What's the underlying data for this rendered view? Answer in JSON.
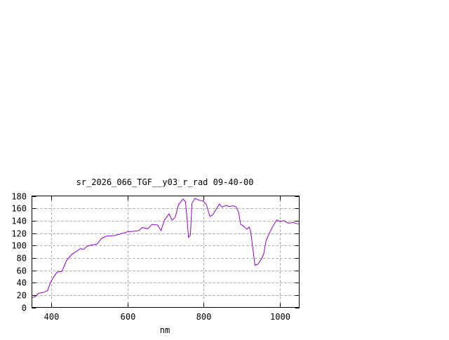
{
  "chart_data": {
    "type": "line",
    "title": "sr_2026_066_TGF__y03_r_rad 09-40-00",
    "xlabel": "nm",
    "ylabel": "",
    "xlim": [
      350,
      1050
    ],
    "ylim": [
      0,
      180
    ],
    "xticks": [
      400,
      600,
      800,
      1000
    ],
    "yticks": [
      0,
      20,
      40,
      60,
      80,
      100,
      120,
      140,
      160,
      180
    ],
    "grid": true,
    "line_color": "#9400d3",
    "series": [
      {
        "x": [
          350,
          358,
          367,
          379,
          391,
          399,
          407,
          416,
          428,
          434,
          440,
          453,
          468,
          477,
          486,
          495,
          508,
          520,
          532,
          544,
          566,
          584,
          600,
          630,
          639,
          654,
          664,
          679,
          688,
          697,
          709,
          717,
          725,
          734,
          746,
          752,
          756,
          760,
          765,
          769,
          777,
          789,
          798,
          807,
          816,
          823,
          832,
          841,
          848,
          859,
          865,
          878,
          885,
          891,
          897,
          905,
          913,
          919,
          923,
          930,
          934,
          942,
          951,
          957,
          963,
          972,
          982,
          991,
          1000,
          1009,
          1021,
          1034,
          1046,
          1050
        ],
        "y": [
          16,
          17,
          23,
          24,
          27,
          41,
          49,
          57,
          58,
          66,
          75,
          85,
          91,
          95,
          94,
          99,
          101,
          102,
          111,
          115,
          116,
          119,
          122,
          124,
          129,
          127,
          134,
          133,
          124,
          141,
          151,
          141,
          145,
          166,
          175,
          171,
          145,
          113,
          117,
          168,
          176,
          173,
          172,
          166,
          147,
          149,
          158,
          167,
          162,
          165,
          163,
          164,
          162,
          154,
          134,
          131,
          126,
          130,
          122,
          88,
          68,
          70,
          78,
          86,
          107,
          120,
          132,
          141,
          139,
          140,
          136,
          137,
          135,
          135
        ]
      }
    ]
  }
}
